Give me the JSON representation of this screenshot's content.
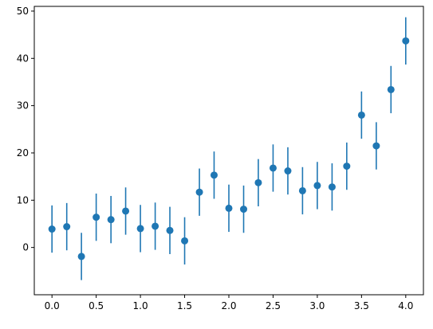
{
  "chart_data": {
    "type": "scatter",
    "title": "",
    "xlabel": "",
    "ylabel": "",
    "xlim": [
      -0.2,
      4.2
    ],
    "ylim": [
      -10,
      51
    ],
    "grid": false,
    "legend": "none",
    "x_ticks": [
      0.0,
      0.5,
      1.0,
      1.5,
      2.0,
      2.5,
      3.0,
      3.5,
      4.0
    ],
    "x_tick_labels": [
      "0.0",
      "0.5",
      "1.0",
      "1.5",
      "2.0",
      "2.5",
      "3.0",
      "3.5",
      "4.0"
    ],
    "y_ticks": [
      0,
      10,
      20,
      30,
      40,
      50
    ],
    "y_tick_labels": [
      "0",
      "10",
      "20",
      "30",
      "40",
      "50"
    ],
    "marker_color": "#1f77b4",
    "error_color": "#1f77b4",
    "series": [
      {
        "x": [
          0.0,
          0.167,
          0.333,
          0.5,
          0.667,
          0.833,
          1.0,
          1.167,
          1.333,
          1.5,
          1.667,
          1.833,
          2.0,
          2.167,
          2.333,
          2.5,
          2.667,
          2.833,
          3.0,
          3.167,
          3.333,
          3.5,
          3.667,
          3.833,
          4.0
        ],
        "y": [
          3.9,
          4.4,
          -1.9,
          6.4,
          5.9,
          7.7,
          4.0,
          4.5,
          3.6,
          1.4,
          11.7,
          15.3,
          8.3,
          8.1,
          13.7,
          16.8,
          16.2,
          12.0,
          13.1,
          12.8,
          17.2,
          28.0,
          21.5,
          33.4,
          43.7
        ],
        "yerr": [
          5.0,
          5.0,
          5.0,
          5.0,
          5.0,
          5.0,
          5.0,
          5.0,
          5.0,
          5.0,
          5.0,
          5.0,
          5.0,
          5.0,
          5.0,
          5.0,
          5.0,
          5.0,
          5.0,
          5.0,
          5.0,
          5.0,
          5.0,
          5.0,
          5.0
        ]
      }
    ]
  }
}
